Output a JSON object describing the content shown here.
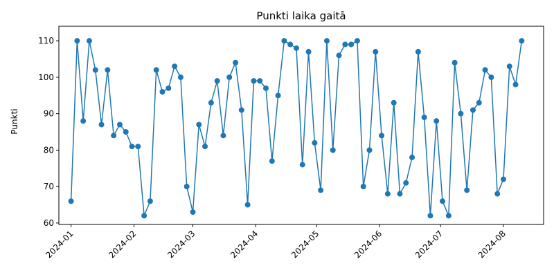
{
  "chart_data": {
    "type": "line",
    "title": "Punkti laika gaitā",
    "y_label": "Punkti",
    "categories": [
      null,
      null,
      null,
      null,
      null,
      null,
      null,
      null,
      null,
      null,
      null,
      null,
      null,
      null,
      null,
      null,
      null,
      null,
      null,
      null,
      null,
      null,
      null,
      null,
      null,
      null,
      null,
      null,
      null,
      null,
      null,
      null,
      null,
      null,
      null,
      null,
      null,
      null,
      null,
      null,
      null,
      null,
      null,
      null,
      null,
      null,
      null,
      null,
      null,
      null,
      null,
      null,
      null,
      null,
      null,
      null,
      null,
      null,
      null,
      null,
      null,
      null,
      null,
      null,
      null,
      null,
      null,
      null,
      null,
      null,
      null,
      null,
      null,
      null,
      null
    ],
    "series": [
      {
        "name": "Punkti",
        "color": "#1f77b4",
        "values": [
          66,
          110,
          88,
          110,
          102,
          87,
          102,
          84,
          87,
          85,
          81,
          81,
          62,
          66,
          102,
          96,
          97,
          103,
          100,
          70,
          63,
          87,
          81,
          93,
          99,
          84,
          100,
          104,
          91,
          65,
          99,
          99,
          97,
          77,
          95,
          110,
          109,
          108,
          76,
          107,
          82,
          69,
          110,
          80,
          106,
          109,
          109,
          110,
          70,
          80,
          107,
          84,
          68,
          93,
          68,
          71,
          78,
          107,
          89,
          62,
          88,
          66,
          62,
          104,
          90,
          69,
          91,
          93,
          102,
          100,
          68,
          72,
          103,
          98,
          110
        ]
      }
    ],
    "xlim": [
      -2,
      77.6
    ],
    "xticks": [
      {
        "value": 0,
        "label": "2024-01"
      },
      {
        "value": 10.33,
        "label": "2024-02"
      },
      {
        "value": 20,
        "label": "2024-03"
      },
      {
        "value": 30.33,
        "label": "2024-04"
      },
      {
        "value": 40.33,
        "label": "2024-05"
      },
      {
        "value": 50.67,
        "label": "2024-06"
      },
      {
        "value": 60.67,
        "label": "2024-07"
      },
      {
        "value": 71,
        "label": "2024-08"
      }
    ],
    "ylim": [
      59.6,
      114
    ],
    "yticks": [
      60,
      70,
      80,
      90,
      100,
      110
    ],
    "grid": false
  }
}
